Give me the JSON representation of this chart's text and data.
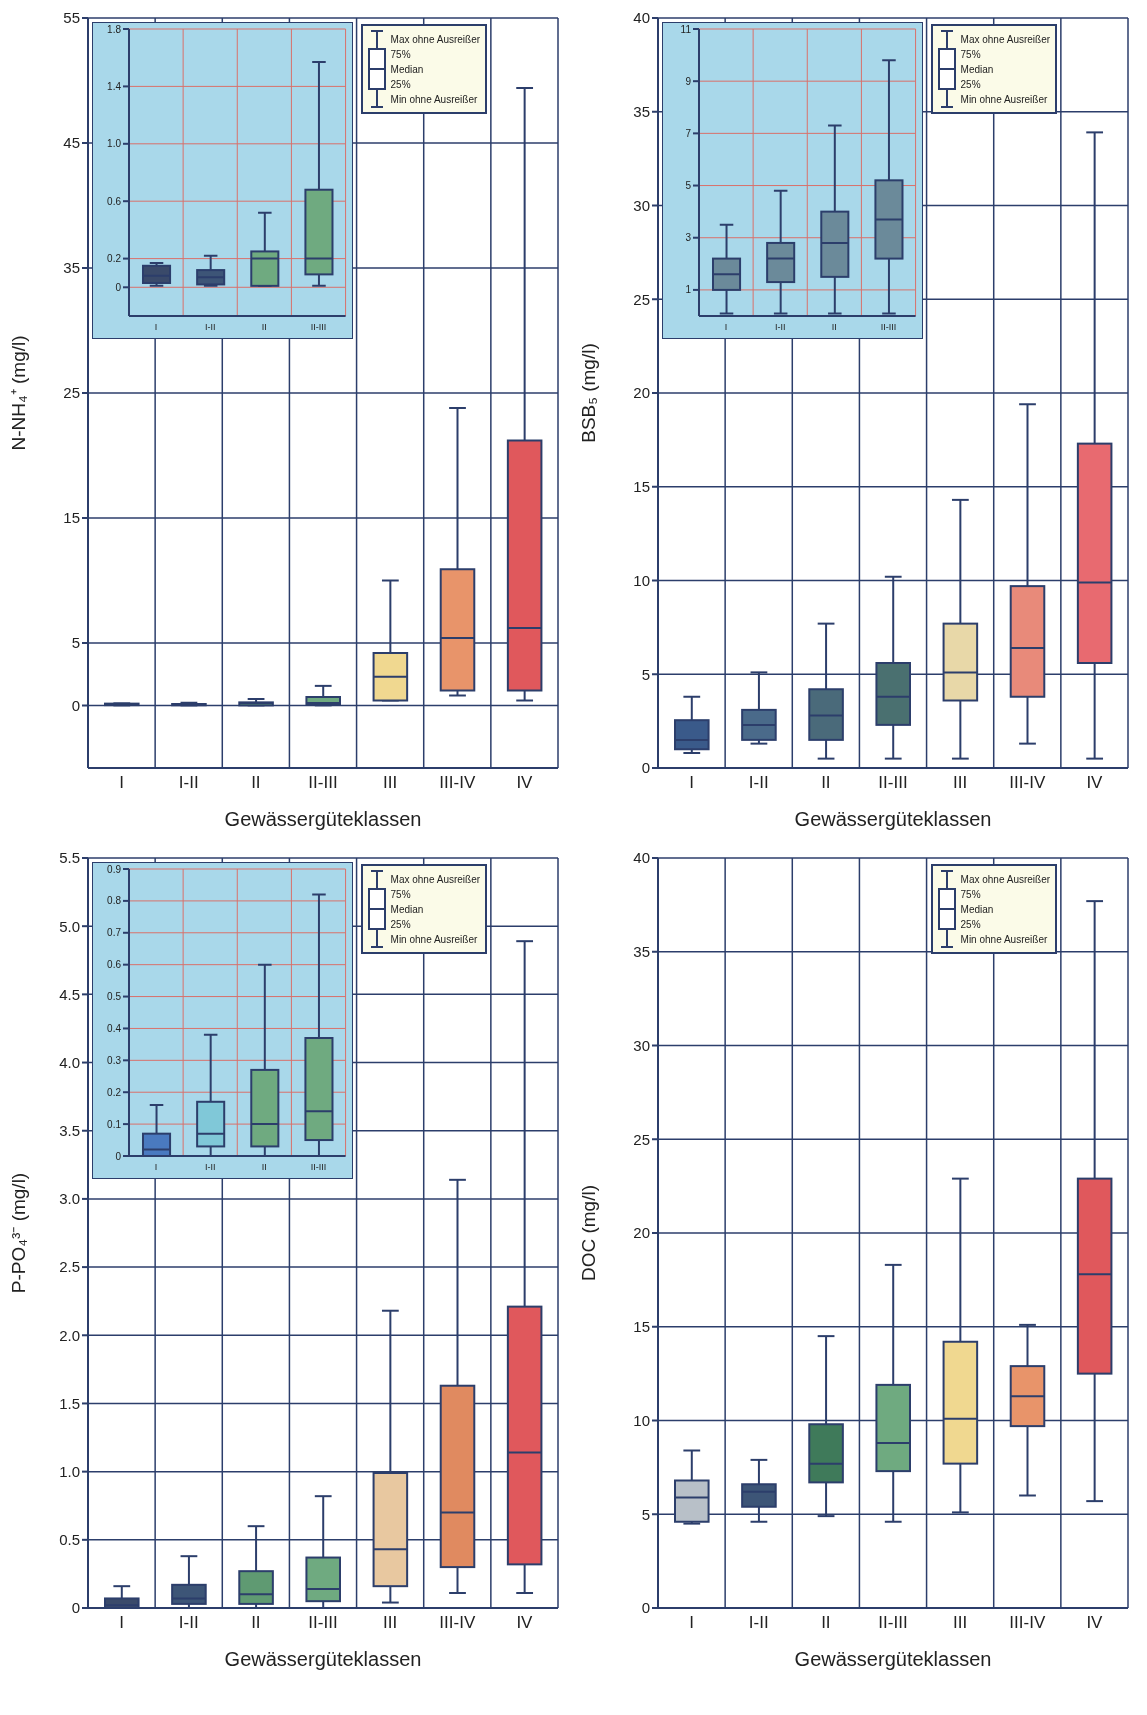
{
  "chart_data": [
    {
      "type": "box",
      "xlabel": "Gewässergüteklassen",
      "ylabel": "N-NH₄⁺ (mg/l)",
      "categories": [
        "I",
        "I-II",
        "II",
        "II-III",
        "III",
        "III-IV",
        "IV"
      ],
      "ylim": [
        -5,
        55
      ],
      "yticks": [
        0,
        5,
        15,
        25,
        35,
        45,
        55
      ],
      "grid": true,
      "colors": [
        "#3a4a6a",
        "#3d5577",
        "#5f9a72",
        "#6faa80",
        "#f0d890",
        "#e8946a",
        "#e0585c"
      ],
      "boxes": [
        {
          "low": 0.01,
          "q1": 0.03,
          "median": 0.08,
          "q3": 0.15,
          "high": 0.17
        },
        {
          "low": 0.01,
          "q1": 0.02,
          "median": 0.07,
          "q3": 0.12,
          "high": 0.22
        },
        {
          "low": 0.01,
          "q1": 0.01,
          "median": 0.2,
          "q3": 0.25,
          "high": 0.52
        },
        {
          "low": 0.01,
          "q1": 0.09,
          "median": 0.2,
          "q3": 0.68,
          "high": 1.57
        },
        {
          "low": 0.4,
          "q1": 0.4,
          "median": 2.3,
          "q3": 4.2,
          "high": 10
        },
        {
          "low": 0.8,
          "q1": 1.2,
          "median": 5.4,
          "q3": 10.9,
          "high": 23.8
        },
        {
          "low": 0.4,
          "q1": 1.2,
          "median": 6.2,
          "q3": 21.2,
          "high": 49.4
        }
      ],
      "annotations": [
        "Max ohne Ausreißer",
        "75%",
        "Median",
        "25%",
        "Min ohne Ausreißer"
      ]
    },
    {
      "type": "box",
      "categories": [
        "I",
        "I-II",
        "II",
        "II-III"
      ],
      "ylim": [
        -0.2,
        1.8
      ],
      "yticks": [
        0,
        {
          "value": 0.2,
          "label": "0.2"
        },
        {
          "value": 0.6,
          "label": "0.6"
        },
        {
          "value": 1,
          "label": "1.0"
        },
        {
          "value": 1.4,
          "label": "1.4"
        },
        {
          "value": 1.8,
          "label": "1.8"
        }
      ],
      "grid": true,
      "colors": [
        "#3a4a6a",
        "#3d5577",
        "#6faa80",
        "#6faa80"
      ],
      "boxes": [
        {
          "low": 0.01,
          "q1": 0.03,
          "median": 0.08,
          "q3": 0.15,
          "high": 0.17
        },
        {
          "low": 0.01,
          "q1": 0.02,
          "median": 0.07,
          "q3": 0.12,
          "high": 0.22
        },
        {
          "low": 0.01,
          "q1": 0.01,
          "median": 0.2,
          "q3": 0.25,
          "high": 0.52
        },
        {
          "low": 0.01,
          "q1": 0.09,
          "median": 0.2,
          "q3": 0.68,
          "high": 1.57
        }
      ]
    },
    {
      "type": "box",
      "xlabel": "Gewässergüteklassen",
      "ylabel": "BSB₅ (mg/l)",
      "categories": [
        "I",
        "I-II",
        "II",
        "II-III",
        "III",
        "III-IV",
        "IV"
      ],
      "ylim": [
        0,
        40
      ],
      "yticks": [
        0,
        5,
        10,
        15,
        20,
        25,
        30,
        35,
        40
      ],
      "grid": true,
      "colors": [
        "#3a5a8a",
        "#4a6a8a",
        "#4a6a7a",
        "#4a7070",
        "#e8d8a8",
        "#e88a7a",
        "#e86a70"
      ],
      "boxes": [
        {
          "low": 0.8,
          "q1": 1,
          "median": 1.5,
          "q3": 2.55,
          "high": 3.8
        },
        {
          "low": 1.3,
          "q1": 1.5,
          "median": 2.3,
          "q3": 3.1,
          "high": 5.1
        },
        {
          "low": 0.5,
          "q1": 1.5,
          "median": 2.8,
          "q3": 4.2,
          "high": 7.7
        },
        {
          "low": 0.5,
          "q1": 2.3,
          "median": 3.8,
          "q3": 5.6,
          "high": 10.2
        },
        {
          "low": 0.5,
          "q1": 3.6,
          "median": 5.1,
          "q3": 7.7,
          "high": 14.3
        },
        {
          "low": 1.3,
          "q1": 3.8,
          "median": 6.4,
          "q3": 9.7,
          "high": 19.4
        },
        {
          "low": 0.5,
          "q1": 5.6,
          "median": 9.9,
          "q3": 17.3,
          "high": 33.9
        }
      ],
      "annotations": [
        "Max ohne Ausreißer",
        "75%",
        "Median",
        "25%",
        "Min ohne Ausreißer"
      ]
    },
    {
      "type": "box",
      "categories": [
        "I",
        "I-II",
        "II",
        "II-III"
      ],
      "ylim": [
        0,
        11
      ],
      "yticks": [
        1,
        3,
        5,
        7,
        9,
        11
      ],
      "grid": true,
      "colors": [
        "#6b8a9a",
        "#6b8a9a",
        "#6b8a9a",
        "#6b8a9a"
      ],
      "boxes": [
        {
          "low": 0.1,
          "q1": 1,
          "median": 1.6,
          "q3": 2.2,
          "high": 3.5
        },
        {
          "low": 0.1,
          "q1": 1.3,
          "median": 2.2,
          "q3": 2.8,
          "high": 4.8
        },
        {
          "low": 0.1,
          "q1": 1.5,
          "median": 2.8,
          "q3": 4,
          "high": 7.3
        },
        {
          "low": 0.1,
          "q1": 2.2,
          "median": 3.7,
          "q3": 5.2,
          "high": 9.8
        }
      ]
    },
    {
      "type": "box",
      "xlabel": "Gewässergüteklassen",
      "ylabel": "P-PO₄³⁻ (mg/l)",
      "categories": [
        "I",
        "I-II",
        "II",
        "II-III",
        "III",
        "III-IV",
        "IV"
      ],
      "ylim": [
        0,
        5.5
      ],
      "yticks": [
        0,
        {
          "value": 0.5,
          "label": "0.5"
        },
        {
          "value": 1,
          "label": "1.0"
        },
        {
          "value": 1.5,
          "label": "1.5"
        },
        {
          "value": 2,
          "label": "2.0"
        },
        {
          "value": 2.5,
          "label": "2.5"
        },
        {
          "value": 3,
          "label": "3.0"
        },
        {
          "value": 3.5,
          "label": "3.5"
        },
        {
          "value": 4,
          "label": "4.0"
        },
        {
          "value": 4.5,
          "label": "4.5"
        },
        {
          "value": 5,
          "label": "5.0"
        },
        {
          "value": 5.5,
          "label": "5.5"
        }
      ],
      "grid": true,
      "colors": [
        "#3a4a6a",
        "#3d5577",
        "#5f9a72",
        "#6faa80",
        "#e8c8a0",
        "#e08a60",
        "#e0585c"
      ],
      "boxes": [
        {
          "low": 0,
          "q1": 0,
          "median": 0.02,
          "q3": 0.07,
          "high": 0.16
        },
        {
          "low": 0,
          "q1": 0.03,
          "median": 0.07,
          "q3": 0.17,
          "high": 0.38
        },
        {
          "low": 0,
          "q1": 0.03,
          "median": 0.1,
          "q3": 0.27,
          "high": 0.6
        },
        {
          "low": 0,
          "q1": 0.05,
          "median": 0.14,
          "q3": 0.37,
          "high": 0.82
        },
        {
          "low": 0.04,
          "q1": 0.16,
          "median": 0.43,
          "q3": 0.99,
          "high": 2.18
        },
        {
          "low": 0.11,
          "q1": 0.3,
          "median": 0.7,
          "q3": 1.63,
          "high": 3.14
        },
        {
          "low": 0.11,
          "q1": 0.32,
          "median": 1.14,
          "q3": 2.21,
          "high": 4.89
        }
      ],
      "annotations": [
        "Max ohne Ausreißer",
        "75%",
        "Median",
        "25%",
        "Min ohne Ausreißer"
      ]
    },
    {
      "type": "box",
      "categories": [
        "I",
        "I-II",
        "II",
        "II-III"
      ],
      "ylim": [
        0,
        0.9
      ],
      "yticks": [
        0,
        {
          "value": 0.1,
          "label": "0.1"
        },
        {
          "value": 0.2,
          "label": "0.2"
        },
        {
          "value": 0.3,
          "label": "0.3"
        },
        {
          "value": 0.4,
          "label": "0.4"
        },
        {
          "value": 0.5,
          "label": "0.5"
        },
        {
          "value": 0.6,
          "label": "0.6"
        },
        {
          "value": 0.7,
          "label": "0.7"
        },
        {
          "value": 0.8,
          "label": "0.8"
        },
        {
          "value": 0.9,
          "label": "0.9"
        }
      ],
      "grid": true,
      "colors": [
        "#4a7ac0",
        "#80c8d8",
        "#6faa80",
        "#6faa80"
      ],
      "boxes": [
        {
          "low": 0,
          "q1": 0,
          "median": 0.02,
          "q3": 0.07,
          "high": 0.16
        },
        {
          "low": 0,
          "q1": 0.03,
          "median": 0.07,
          "q3": 0.17,
          "high": 0.38
        },
        {
          "low": 0,
          "q1": 0.03,
          "median": 0.1,
          "q3": 0.27,
          "high": 0.6
        },
        {
          "low": 0,
          "q1": 0.05,
          "median": 0.14,
          "q3": 0.37,
          "high": 0.82
        }
      ]
    },
    {
      "type": "box",
      "xlabel": "Gewässergüteklassen",
      "ylabel": "DOC (mg/l)",
      "categories": [
        "I",
        "I-II",
        "II",
        "II-III",
        "III",
        "III-IV",
        "IV"
      ],
      "ylim": [
        0,
        40
      ],
      "yticks": [
        0,
        5,
        10,
        15,
        20,
        25,
        30,
        35,
        40
      ],
      "grid": true,
      "colors": [
        "#b8c0c8",
        "#3d5577",
        "#3f7a5a",
        "#6faa80",
        "#f0d890",
        "#e8946a",
        "#e0585c"
      ],
      "boxes": [
        {
          "low": 4.5,
          "q1": 4.6,
          "median": 5.9,
          "q3": 6.8,
          "high": 8.4
        },
        {
          "low": 4.6,
          "q1": 5.4,
          "median": 6.2,
          "q3": 6.6,
          "high": 7.9
        },
        {
          "low": 4.9,
          "q1": 6.7,
          "median": 7.7,
          "q3": 9.8,
          "high": 14.5
        },
        {
          "low": 4.6,
          "q1": 7.3,
          "median": 8.8,
          "q3": 11.9,
          "high": 18.3
        },
        {
          "low": 5.1,
          "q1": 7.7,
          "median": 10.1,
          "q3": 14.2,
          "high": 22.9
        },
        {
          "low": 6,
          "q1": 9.7,
          "median": 11.3,
          "q3": 12.9,
          "high": 15.1
        },
        {
          "low": 5.7,
          "q1": 12.5,
          "median": 17.8,
          "q3": 22.9,
          "high": 37.7
        }
      ],
      "annotations": [
        "Max ohne Ausreißer",
        "75%",
        "Median",
        "25%",
        "Min ohne Ausreißer"
      ]
    }
  ]
}
